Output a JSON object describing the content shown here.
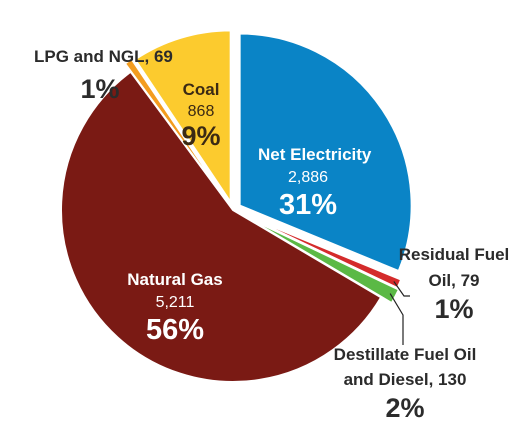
{
  "chart_data": {
    "type": "pie",
    "slices": [
      {
        "name": "Net Electricity",
        "value_label": "2,886",
        "value": 2886,
        "pct": "31%",
        "color": "#0a84c6",
        "key": "net_electricity"
      },
      {
        "name": "Residual Fuel Oil",
        "name_line1": "Residual Fuel",
        "name_line2": "Oil, 79",
        "value": 79,
        "pct": "1%",
        "color": "#d42b2b",
        "key": "residual_fuel_oil"
      },
      {
        "name": "Destillate Fuel Oil and Diesel",
        "name_line1": "Destillate Fuel Oil",
        "name_line2": "and Diesel, 130",
        "value": 130,
        "pct": "2%",
        "color": "#5bb945",
        "key": "destillate"
      },
      {
        "name": "Natural Gas",
        "value_label": "5,211",
        "value": 5211,
        "pct": "56%",
        "color": "#7a1a14",
        "key": "natural_gas"
      },
      {
        "name": "LPG and NGL",
        "name_line1": "LPG and NGL, 69",
        "value": 69,
        "pct": "1%",
        "color": "#f39c1f",
        "key": "lpg_ngl"
      },
      {
        "name": "Coal",
        "value_label": "868",
        "value": 868,
        "pct": "9%",
        "color": "#fccb2e",
        "key": "coal"
      }
    ]
  },
  "labels": {
    "net_electricity": {
      "name": "Net Electricity",
      "value": "2,886",
      "pct": "31%"
    },
    "residual_fuel_oil": {
      "line1": "Residual Fuel",
      "line2": "Oil, 79",
      "pct": "1%"
    },
    "destillate": {
      "line1": "Destillate Fuel Oil",
      "line2": "and Diesel, 130",
      "pct": "2%"
    },
    "natural_gas": {
      "name": "Natural Gas",
      "value": "5,211",
      "pct": "56%"
    },
    "lpg_ngl": {
      "line1": "LPG and NGL, 69",
      "pct": "1%"
    },
    "coal": {
      "name": "Coal",
      "value": "868",
      "pct": "9%"
    }
  }
}
